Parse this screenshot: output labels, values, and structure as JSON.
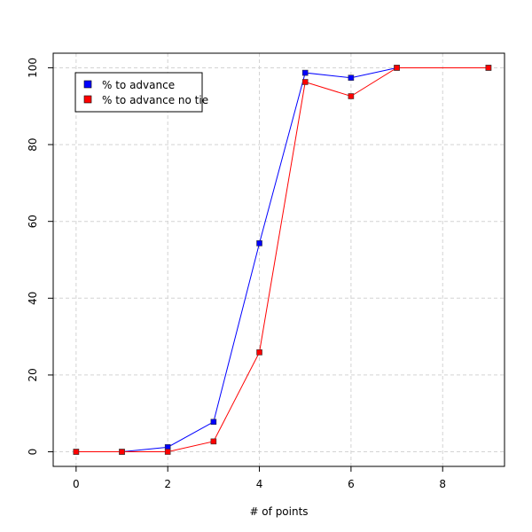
{
  "chart_data": {
    "type": "line",
    "title": "",
    "xlabel": "# of points",
    "ylabel": "",
    "xlim": [
      -0.5,
      9.35
    ],
    "ylim": [
      -3.8,
      103.8
    ],
    "xticks": [
      0,
      2,
      4,
      6,
      8
    ],
    "yticks": [
      0,
      20,
      40,
      60,
      80,
      100
    ],
    "grid": true,
    "legend_position": "top-left",
    "series": [
      {
        "name": "% to advance",
        "color": "#0000ff",
        "x": [
          0,
          1,
          2,
          3,
          4,
          5,
          6,
          7,
          9
        ],
        "y": [
          0,
          0,
          1.2,
          7.8,
          54.3,
          98.7,
          97.4,
          100,
          100
        ]
      },
      {
        "name": "% to advance no tie",
        "color": "#ff0000",
        "x": [
          0,
          1,
          2,
          3,
          4,
          5,
          6,
          7,
          9
        ],
        "y": [
          0,
          0,
          0,
          2.7,
          25.9,
          96.3,
          92.6,
          100,
          100
        ]
      }
    ]
  }
}
